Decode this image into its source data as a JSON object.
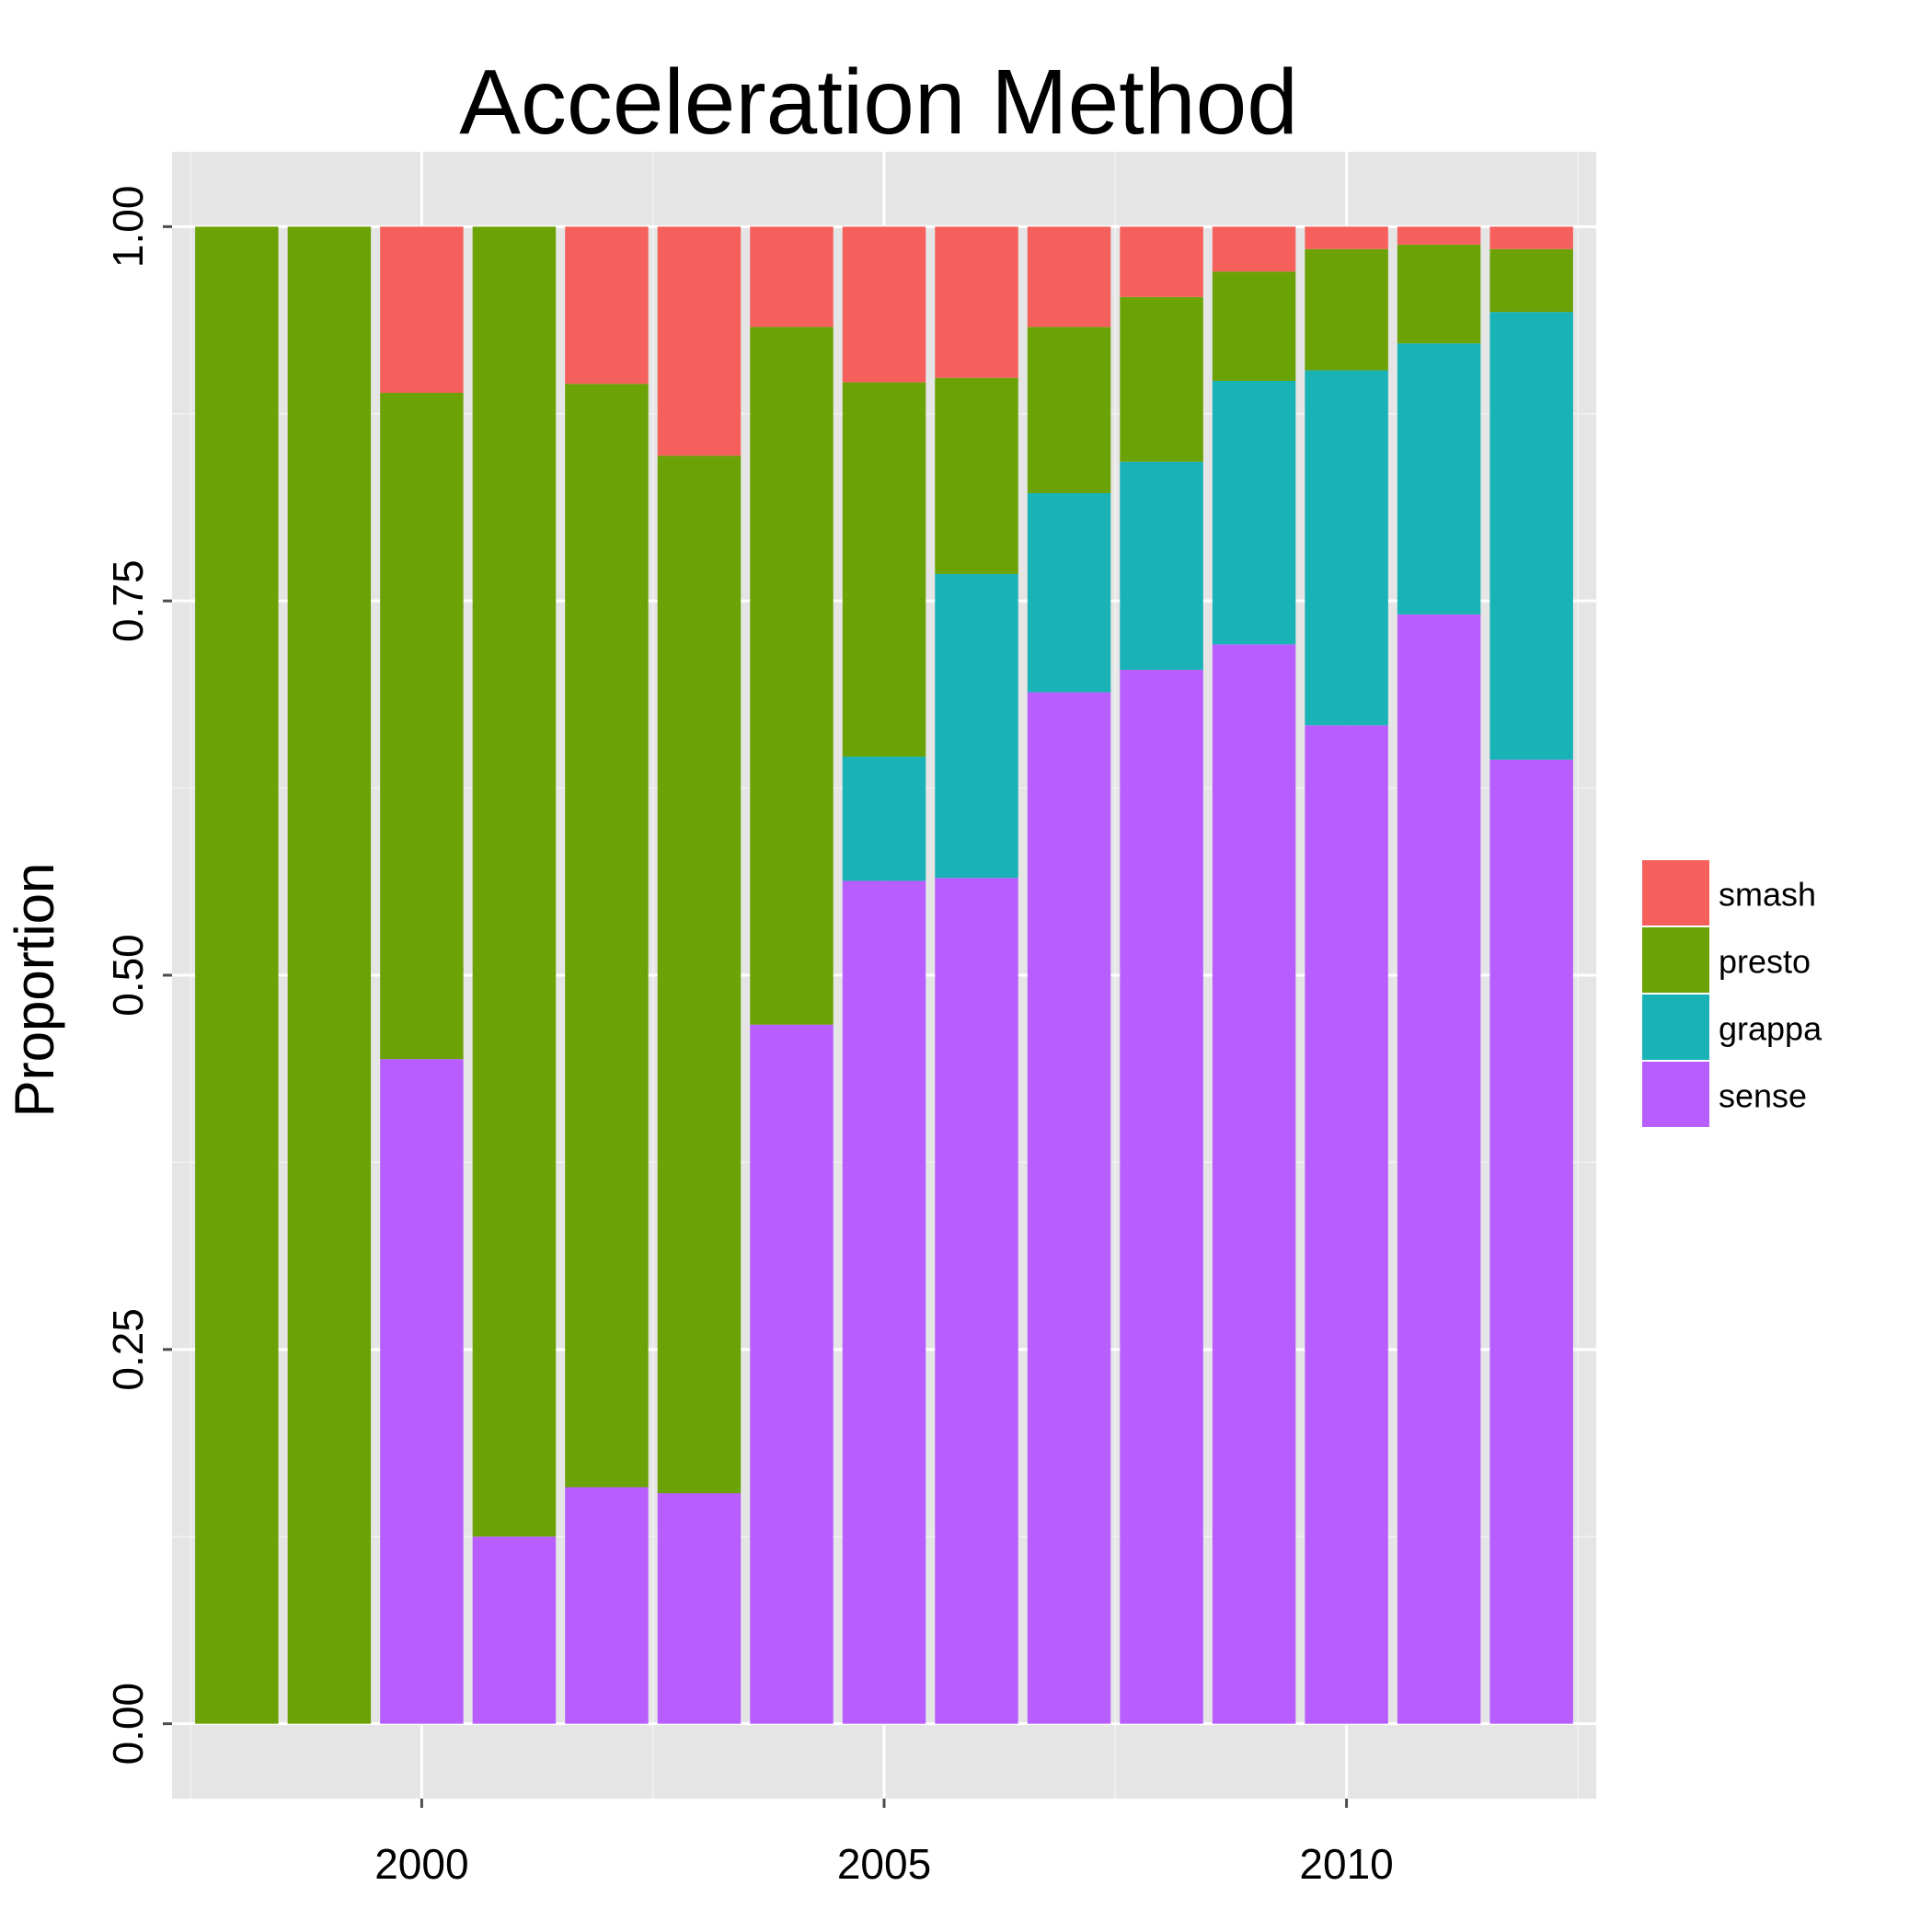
{
  "chart_data": {
    "type": "bar",
    "stacked": true,
    "title": "Acceleration Method",
    "xlabel": "",
    "ylabel": "Proportion",
    "x_ticks": [
      "2000",
      "2005",
      "2010"
    ],
    "y_ticks": [
      "0.00",
      "0.25",
      "0.50",
      "0.75",
      "1.00"
    ],
    "ylim": [
      -0.05,
      1.05
    ],
    "xlim": [
      1997.3,
      2012.7
    ],
    "grid": true,
    "legend_position": "right",
    "categories": [
      1998,
      1999,
      2000,
      2001,
      2002,
      2003,
      2004,
      2005,
      2006,
      2007,
      2008,
      2009,
      2010,
      2011,
      2012
    ],
    "series": [
      {
        "name": "sense",
        "color": "#B85EFF",
        "values": [
          0,
          0,
          0.444,
          0.125,
          0.158,
          0.154,
          0.467,
          0.563,
          0.565,
          0.689,
          0.704,
          0.721,
          0.667,
          0.741,
          0.644
        ]
      },
      {
        "name": "grappa",
        "color": "#19B2B6",
        "values": [
          0,
          0,
          0,
          0,
          0,
          0,
          0,
          0.083,
          0.203,
          0.133,
          0.139,
          0.176,
          0.237,
          0.181,
          0.299
        ]
      },
      {
        "name": "presto",
        "color": "#6BA205",
        "values": [
          1,
          1,
          0.445,
          0.875,
          0.737,
          0.693,
          0.466,
          0.25,
          0.131,
          0.111,
          0.11,
          0.073,
          0.081,
          0.066,
          0.042
        ]
      },
      {
        "name": "smash",
        "color": "#F5605C",
        "values": [
          0,
          0,
          0.111,
          0,
          0.105,
          0.153,
          0.067,
          0.104,
          0.101,
          0.067,
          0.047,
          0.03,
          0.015,
          0.012,
          0.015
        ]
      }
    ],
    "legend_order": [
      "smash",
      "presto",
      "grappa",
      "sense"
    ]
  }
}
